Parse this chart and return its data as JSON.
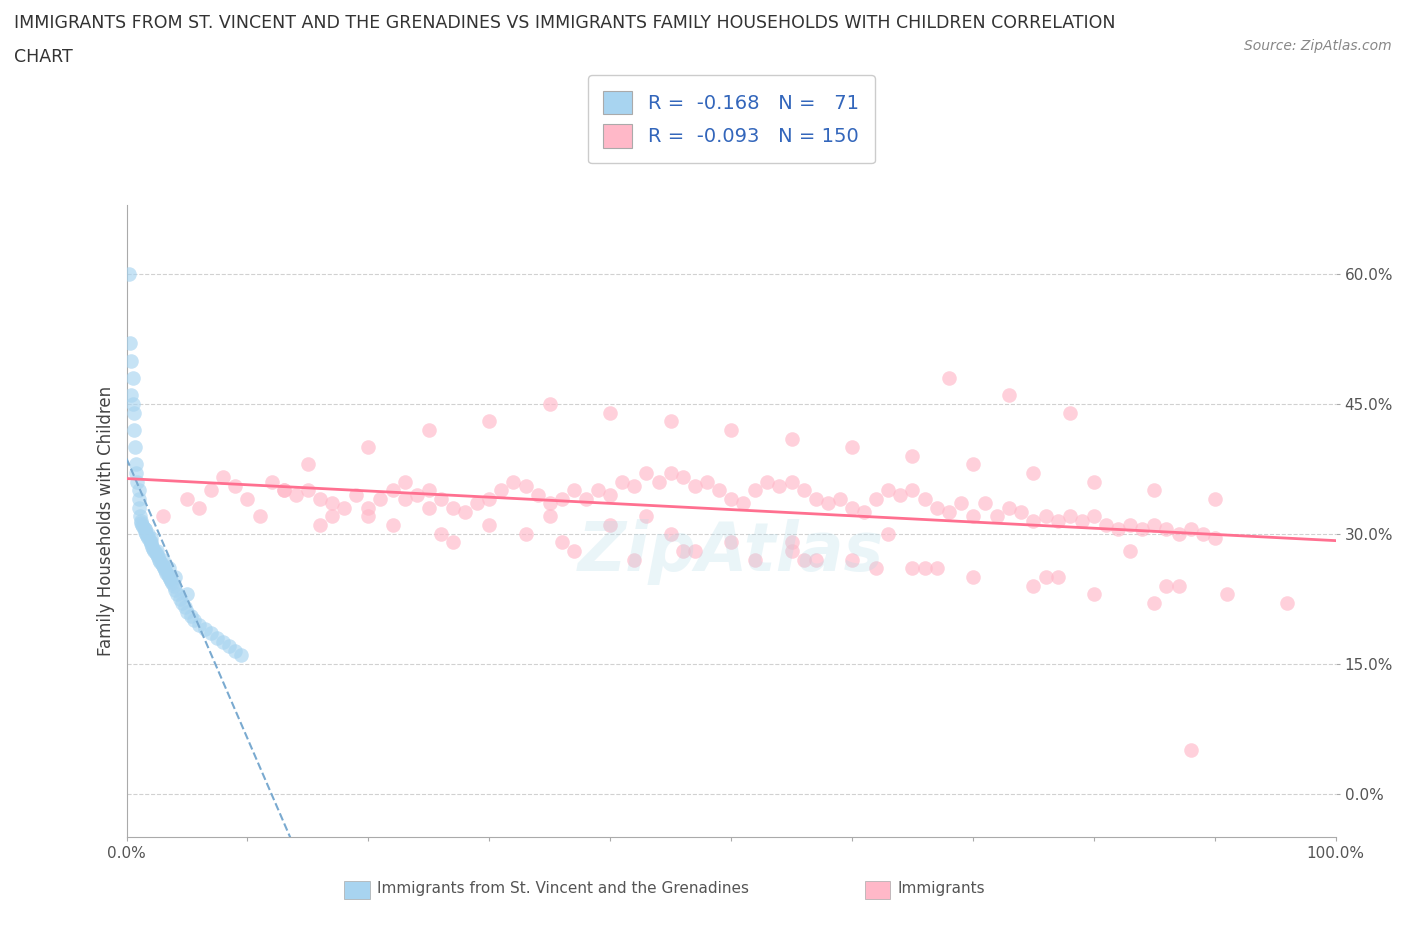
{
  "title_line1": "IMMIGRANTS FROM ST. VINCENT AND THE GRENADINES VS IMMIGRANTS FAMILY HOUSEHOLDS WITH CHILDREN CORRELATION",
  "title_line2": "CHART",
  "source": "Source: ZipAtlas.com",
  "ylabel": "Family Households with Children",
  "legend_label1": "Immigrants from St. Vincent and the Grenadines",
  "legend_label2": "Immigrants",
  "R1": -0.168,
  "N1": 71,
  "R2": -0.093,
  "N2": 150,
  "color1": "#A8D4F0",
  "color1_line": "#7AAAD0",
  "color2": "#FFB8C8",
  "color2_line": "#FF7090",
  "xlim": [
    0,
    100
  ],
  "ylim": [
    -5,
    68
  ],
  "yticks": [
    0,
    15,
    30,
    45,
    60
  ],
  "ytick_labels": [
    "0.0%",
    "15.0%",
    "30.0%",
    "45.0%",
    "60.0%"
  ],
  "xticks": [
    0,
    10,
    20,
    30,
    40,
    50,
    60,
    70,
    80,
    90,
    100
  ],
  "grid_color": "#CCCCCC",
  "background_color": "#FFFFFF",
  "blue_x": [
    0.2,
    0.3,
    0.4,
    0.5,
    0.5,
    0.6,
    0.7,
    0.8,
    0.9,
    1.0,
    1.0,
    1.1,
    1.2,
    1.3,
    1.4,
    1.5,
    1.5,
    1.6,
    1.7,
    1.8,
    1.9,
    2.0,
    2.0,
    2.1,
    2.2,
    2.3,
    2.4,
    2.5,
    2.6,
    2.7,
    2.8,
    2.9,
    3.0,
    3.1,
    3.2,
    3.3,
    3.4,
    3.5,
    3.6,
    3.7,
    3.8,
    3.9,
    4.0,
    4.2,
    4.4,
    4.6,
    4.8,
    5.0,
    5.3,
    5.6,
    6.0,
    6.5,
    7.0,
    7.5,
    8.0,
    8.5,
    9.0,
    9.5,
    0.4,
    0.6,
    0.8,
    1.0,
    1.2,
    1.5,
    1.8,
    2.0,
    2.5,
    3.0,
    3.5,
    4.0,
    5.0
  ],
  "blue_y": [
    60.0,
    52.0,
    50.0,
    48.0,
    45.0,
    42.0,
    40.0,
    38.0,
    36.0,
    35.0,
    33.0,
    32.0,
    31.5,
    31.0,
    30.8,
    30.5,
    30.2,
    30.0,
    29.8,
    29.5,
    29.2,
    29.0,
    28.8,
    28.5,
    28.3,
    28.0,
    27.8,
    27.5,
    27.3,
    27.0,
    26.8,
    26.5,
    26.3,
    26.0,
    25.8,
    25.5,
    25.3,
    25.0,
    24.8,
    24.5,
    24.3,
    24.0,
    23.5,
    23.0,
    22.5,
    22.0,
    21.5,
    21.0,
    20.5,
    20.0,
    19.5,
    19.0,
    18.5,
    18.0,
    17.5,
    17.0,
    16.5,
    16.0,
    46.0,
    44.0,
    37.0,
    34.0,
    31.2,
    30.6,
    30.0,
    29.5,
    28.0,
    27.0,
    26.0,
    25.0,
    23.0
  ],
  "pink_x": [
    3.0,
    5.0,
    7.0,
    8.0,
    9.0,
    10.0,
    12.0,
    13.0,
    14.0,
    15.0,
    16.0,
    17.0,
    18.0,
    19.0,
    20.0,
    21.0,
    22.0,
    23.0,
    24.0,
    25.0,
    26.0,
    27.0,
    28.0,
    29.0,
    30.0,
    31.0,
    32.0,
    33.0,
    34.0,
    35.0,
    36.0,
    37.0,
    38.0,
    39.0,
    40.0,
    41.0,
    42.0,
    43.0,
    44.0,
    45.0,
    46.0,
    47.0,
    48.0,
    49.0,
    50.0,
    51.0,
    52.0,
    53.0,
    54.0,
    55.0,
    56.0,
    57.0,
    58.0,
    59.0,
    60.0,
    61.0,
    62.0,
    63.0,
    64.0,
    65.0,
    66.0,
    67.0,
    68.0,
    69.0,
    70.0,
    71.0,
    72.0,
    73.0,
    74.0,
    75.0,
    76.0,
    77.0,
    78.0,
    79.0,
    80.0,
    81.0,
    82.0,
    83.0,
    84.0,
    85.0,
    86.0,
    87.0,
    88.0,
    89.0,
    90.0,
    15.0,
    20.0,
    25.0,
    30.0,
    35.0,
    40.0,
    45.0,
    50.0,
    55.0,
    60.0,
    65.0,
    70.0,
    75.0,
    80.0,
    85.0,
    90.0,
    20.0,
    25.0,
    30.0,
    35.0,
    40.0,
    45.0,
    50.0,
    55.0,
    60.0,
    65.0,
    70.0,
    75.0,
    80.0,
    85.0,
    68.0,
    73.0,
    78.0,
    55.0,
    42.0,
    88.0,
    33.0,
    22.0,
    47.0,
    52.0,
    62.0,
    17.0,
    27.0,
    37.0,
    57.0,
    67.0,
    77.0,
    87.0,
    6.0,
    11.0,
    16.0,
    26.0,
    36.0,
    46.0,
    56.0,
    66.0,
    76.0,
    86.0,
    91.0,
    96.0,
    13.0,
    23.0,
    43.0,
    63.0,
    83.0
  ],
  "pink_y": [
    32.0,
    34.0,
    35.0,
    36.5,
    35.5,
    34.0,
    36.0,
    35.0,
    34.5,
    35.0,
    34.0,
    33.5,
    33.0,
    34.5,
    33.0,
    34.0,
    35.0,
    36.0,
    34.5,
    35.0,
    34.0,
    33.0,
    32.5,
    33.5,
    34.0,
    35.0,
    36.0,
    35.5,
    34.5,
    33.5,
    34.0,
    35.0,
    34.0,
    35.0,
    34.5,
    36.0,
    35.5,
    37.0,
    36.0,
    37.0,
    36.5,
    35.5,
    36.0,
    35.0,
    34.0,
    33.5,
    35.0,
    36.0,
    35.5,
    36.0,
    35.0,
    34.0,
    33.5,
    34.0,
    33.0,
    32.5,
    34.0,
    35.0,
    34.5,
    35.0,
    34.0,
    33.0,
    32.5,
    33.5,
    32.0,
    33.5,
    32.0,
    33.0,
    32.5,
    31.5,
    32.0,
    31.5,
    32.0,
    31.5,
    32.0,
    31.0,
    30.5,
    31.0,
    30.5,
    31.0,
    30.5,
    30.0,
    30.5,
    30.0,
    29.5,
    38.0,
    40.0,
    42.0,
    43.0,
    45.0,
    44.0,
    43.0,
    42.0,
    41.0,
    40.0,
    39.0,
    38.0,
    37.0,
    36.0,
    35.0,
    34.0,
    32.0,
    33.0,
    31.0,
    32.0,
    31.0,
    30.0,
    29.0,
    28.0,
    27.0,
    26.0,
    25.0,
    24.0,
    23.0,
    22.0,
    48.0,
    46.0,
    44.0,
    29.0,
    27.0,
    5.0,
    30.0,
    31.0,
    28.0,
    27.0,
    26.0,
    32.0,
    29.0,
    28.0,
    27.0,
    26.0,
    25.0,
    24.0,
    33.0,
    32.0,
    31.0,
    30.0,
    29.0,
    28.0,
    27.0,
    26.0,
    25.0,
    24.0,
    23.0,
    22.0,
    35.0,
    34.0,
    32.0,
    30.0,
    28.0
  ]
}
